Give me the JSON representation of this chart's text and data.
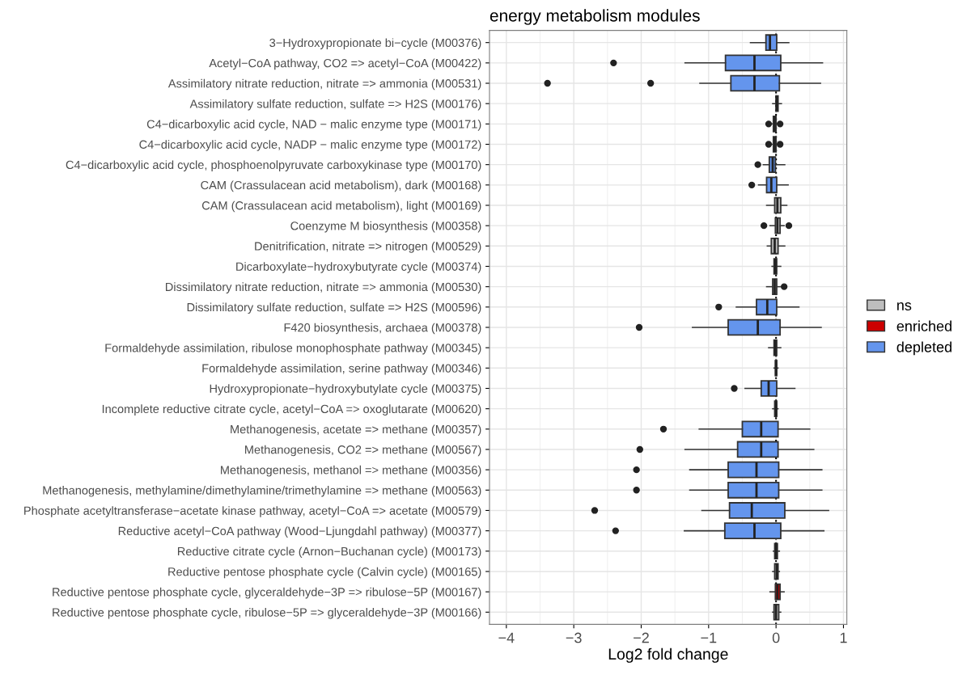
{
  "chart_data": {
    "type": "box",
    "title": "energy metabolism modules",
    "xlabel": "Log2 fold change",
    "orientation": "horizontal",
    "categories": [
      "3−Hydroxypropionate bi−cycle (M00376)",
      "Acetyl−CoA pathway, CO2 => acetyl−CoA (M00422)",
      "Assimilatory nitrate reduction, nitrate => ammonia (M00531)",
      "Assimilatory sulfate reduction, sulfate => H2S (M00176)",
      "C4−dicarboxylic acid cycle, NAD − malic enzyme type (M00171)",
      "C4−dicarboxylic acid cycle, NADP − malic enzyme type (M00172)",
      "C4−dicarboxylic acid cycle, phosphoenolpyruvate carboxykinase type (M00170)",
      "CAM (Crassulacean acid metabolism), dark (M00168)",
      "CAM (Crassulacean acid metabolism), light (M00169)",
      "Coenzyme M biosynthesis (M00358)",
      "Denitrification, nitrate => nitrogen (M00529)",
      "Dicarboxylate−hydroxybutyrate cycle (M00374)",
      "Dissimilatory nitrate reduction, nitrate => ammonia (M00530)",
      "Dissimilatory sulfate reduction, sulfate => H2S (M00596)",
      "F420 biosynthesis, archaea (M00378)",
      "Formaldehyde assimilation, ribulose monophosphate pathway (M00345)",
      "Formaldehyde assimilation, serine pathway (M00346)",
      "Hydroxypropionate−hydroxybutylate cycle (M00375)",
      "Incomplete reductive citrate cycle, acetyl−CoA => oxoglutarate (M00620)",
      "Methanogenesis, acetate => methane (M00357)",
      "Methanogenesis, CO2 => methane (M00567)",
      "Methanogenesis, methanol => methane (M00356)",
      "Methanogenesis, methylamine/dimethylamine/trimethylamine => methane (M00563)",
      "Phosphate acetyltransferase−acetate kinase pathway, acetyl−CoA => acetate (M00579)",
      "Reductive acetyl−CoA pathway (Wood−Ljungdahl pathway) (M00377)",
      "Reductive citrate cycle (Arnon−Buchanan cycle) (M00173)",
      "Reductive pentose phosphate cycle (Calvin cycle) (M00165)",
      "Reductive pentose phosphate cycle, glyceraldehyde−3P => ribulose−5P (M00167)",
      "Reductive pentose phosphate cycle, ribulose−5P => glyceraldehyde−3P (M00166)"
    ],
    "series": [
      {
        "name": "ns",
        "color": "#bebebe",
        "boxes": [
          null,
          null,
          null,
          {
            "low": -0.05,
            "q1": 0.0,
            "median": 0.01,
            "q3": 0.03,
            "high": 0.08
          },
          {
            "low": -0.06,
            "q1": -0.04,
            "median": -0.02,
            "q3": 0.0,
            "high": 0.03,
            "outliers": [
              -0.11,
              0.06
            ]
          },
          {
            "low": -0.06,
            "q1": -0.04,
            "median": -0.02,
            "q3": 0.0,
            "high": 0.03,
            "outliers": [
              -0.11,
              0.06
            ]
          },
          null,
          null,
          {
            "low": -0.14,
            "q1": -0.02,
            "median": 0.02,
            "q3": 0.07,
            "high": 0.16
          },
          {
            "low": -0.09,
            "q1": -0.01,
            "median": 0.02,
            "q3": 0.06,
            "high": 0.12,
            "outliers": [
              -0.18,
              0.19
            ]
          },
          {
            "low": -0.13,
            "q1": -0.07,
            "median": -0.02,
            "q3": 0.03,
            "high": 0.13
          },
          {
            "low": -0.06,
            "q1": -0.03,
            "median": -0.01,
            "q3": 0.01,
            "high": 0.07
          },
          {
            "low": -0.14,
            "q1": -0.05,
            "median": -0.02,
            "q3": 0.01,
            "high": 0.06,
            "outliers": [
              0.12
            ]
          },
          null,
          null,
          {
            "low": -0.11,
            "q1": -0.03,
            "median": -0.01,
            "q3": 0.01,
            "high": 0.07
          },
          {
            "low": -0.03,
            "q1": -0.01,
            "median": 0.0,
            "q3": 0.01,
            "high": 0.03
          },
          null,
          {
            "low": -0.05,
            "q1": -0.02,
            "median": 0.0,
            "q3": 0.01,
            "high": 0.03
          },
          null,
          null,
          null,
          null,
          null,
          null,
          {
            "low": -0.04,
            "q1": -0.02,
            "median": 0.0,
            "q3": 0.02,
            "high": 0.05
          },
          {
            "low": -0.05,
            "q1": -0.02,
            "median": 0.01,
            "q3": 0.03,
            "high": 0.05
          },
          null,
          {
            "low": -0.05,
            "q1": -0.03,
            "median": 0.0,
            "q3": 0.04,
            "high": 0.07
          }
        ]
      },
      {
        "name": "enriched",
        "color": "#cd0000",
        "boxes": [
          null,
          null,
          null,
          null,
          null,
          null,
          null,
          null,
          null,
          null,
          null,
          null,
          null,
          null,
          null,
          null,
          null,
          null,
          null,
          null,
          null,
          null,
          null,
          null,
          null,
          null,
          null,
          {
            "low": -0.09,
            "q1": -0.01,
            "median": 0.02,
            "q3": 0.06,
            "high": 0.12
          },
          null
        ]
      },
      {
        "name": "depleted",
        "color": "#6495ed",
        "boxes": [
          {
            "low": -0.38,
            "q1": -0.15,
            "median": -0.09,
            "q3": 0.01,
            "high": 0.19
          },
          {
            "low": -1.35,
            "q1": -0.75,
            "median": -0.32,
            "q3": 0.07,
            "high": 0.69,
            "outliers": [
              -2.41
            ]
          },
          {
            "low": -1.13,
            "q1": -0.67,
            "median": -0.32,
            "q3": 0.05,
            "high": 0.66,
            "outliers": [
              -3.39,
              -1.86
            ]
          },
          null,
          null,
          null,
          {
            "low": -0.19,
            "q1": -0.1,
            "median": -0.05,
            "q3": -0.01,
            "high": 0.13,
            "outliers": [
              -0.27
            ]
          },
          {
            "low": -0.26,
            "q1": -0.14,
            "median": -0.07,
            "q3": 0.01,
            "high": 0.18,
            "outliers": [
              -0.36
            ]
          },
          null,
          null,
          null,
          null,
          null,
          {
            "low": -0.59,
            "q1": -0.29,
            "median": -0.13,
            "q3": 0.01,
            "high": 0.34,
            "outliers": [
              -0.85
            ]
          },
          {
            "low": -1.24,
            "q1": -0.71,
            "median": -0.27,
            "q3": 0.06,
            "high": 0.67,
            "outliers": [
              -2.03
            ]
          },
          null,
          null,
          {
            "low": -0.46,
            "q1": -0.22,
            "median": -0.11,
            "q3": 0.01,
            "high": 0.28,
            "outliers": [
              -0.62
            ]
          },
          null,
          {
            "low": -1.14,
            "q1": -0.5,
            "median": -0.22,
            "q3": 0.03,
            "high": 0.5,
            "outliers": [
              -1.67
            ]
          },
          {
            "low": -1.35,
            "q1": -0.57,
            "median": -0.22,
            "q3": 0.03,
            "high": 0.56,
            "outliers": [
              -2.02
            ]
          },
          {
            "low": -1.28,
            "q1": -0.71,
            "median": -0.29,
            "q3": 0.04,
            "high": 0.68,
            "outliers": [
              -2.07
            ]
          },
          {
            "low": -1.28,
            "q1": -0.71,
            "median": -0.29,
            "q3": 0.04,
            "high": 0.68,
            "outliers": [
              -2.07
            ]
          },
          {
            "low": -1.1,
            "q1": -0.69,
            "median": -0.36,
            "q3": 0.13,
            "high": 0.78,
            "outliers": [
              -2.69
            ]
          },
          {
            "low": -1.36,
            "q1": -0.76,
            "median": -0.32,
            "q3": 0.07,
            "high": 0.71,
            "outliers": [
              -2.38
            ]
          },
          null,
          null,
          null,
          null
        ]
      }
    ],
    "xlim": [
      -4.25,
      1.05
    ],
    "xticks": [
      {
        "value": -4,
        "label": "−4"
      },
      {
        "value": -3,
        "label": "−3"
      },
      {
        "value": -2,
        "label": "−2"
      },
      {
        "value": -1,
        "label": "−1"
      },
      0,
      1
    ],
    "ref_lines": [
      {
        "axis": "x",
        "value": 0,
        "color": "#000000",
        "line_style": "dotted"
      }
    ],
    "grid": true,
    "legend": "right"
  }
}
